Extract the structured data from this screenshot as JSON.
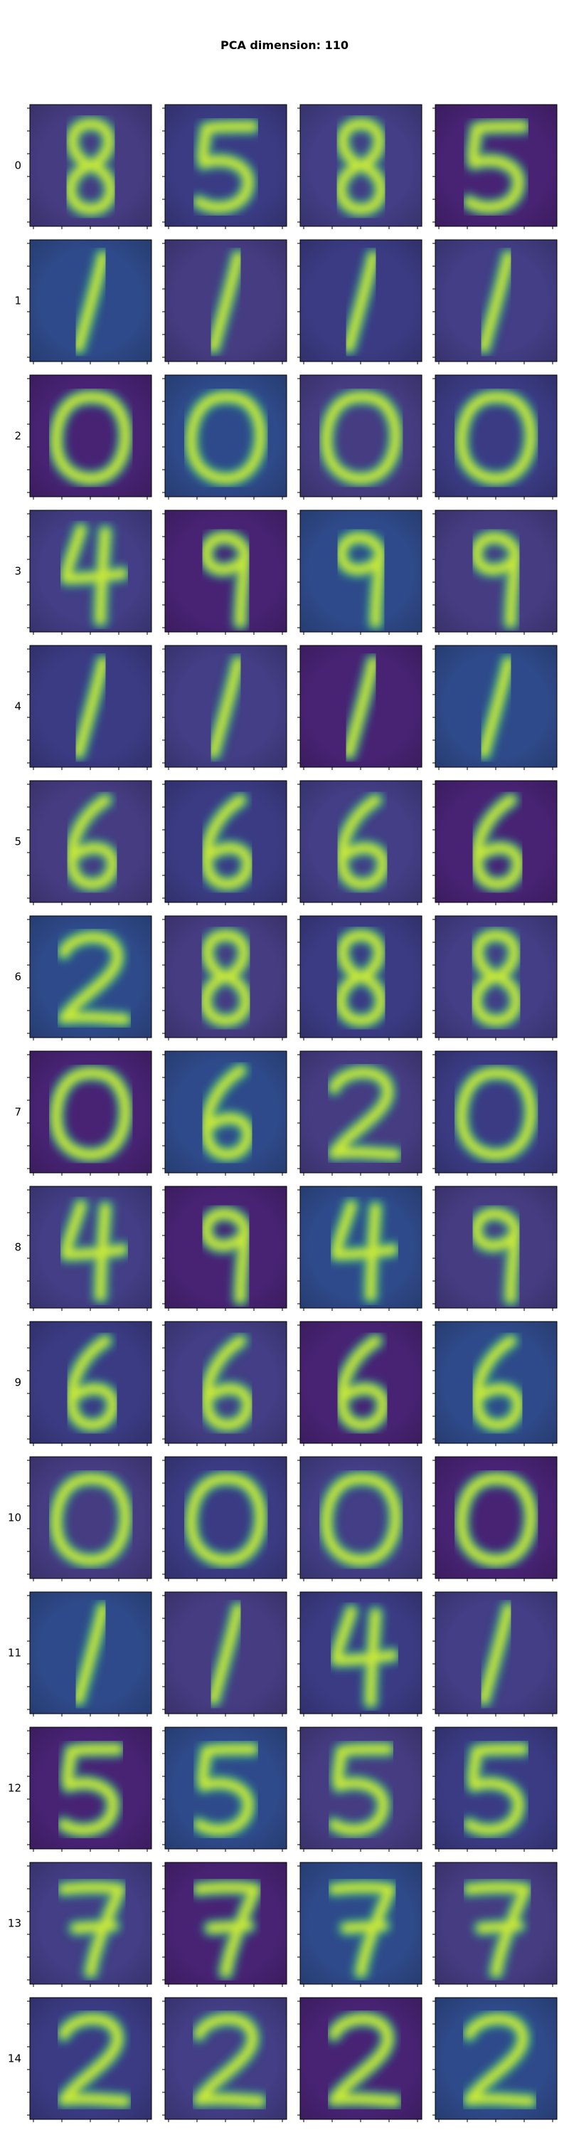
{
  "title": "PCA dimension: 110",
  "chart_data": {
    "type": "image-grid",
    "title": "PCA dimension: 110",
    "rows": 15,
    "cols": 4,
    "row_labels": [
      "0",
      "1",
      "2",
      "3",
      "4",
      "5",
      "6",
      "7",
      "8",
      "9",
      "10",
      "11",
      "12",
      "13",
      "14"
    ],
    "colormap": "viridis",
    "digits_shown": [
      [
        "8",
        "5",
        "8",
        "5"
      ],
      [
        "1",
        "1",
        "1",
        "1"
      ],
      [
        "0",
        "0",
        "0",
        "0"
      ],
      [
        "4",
        "9",
        "9",
        "9"
      ],
      [
        "1",
        "1",
        "1",
        "1"
      ],
      [
        "6",
        "6",
        "6",
        "6"
      ],
      [
        "2",
        "8",
        "8",
        "8"
      ],
      [
        "0",
        "6",
        "2",
        "0"
      ],
      [
        "4",
        "9",
        "4",
        "9"
      ],
      [
        "6",
        "6",
        "6",
        "6"
      ],
      [
        "0",
        "0",
        "0",
        "0"
      ],
      [
        "1",
        "1",
        "4",
        "1"
      ],
      [
        "5",
        "5",
        "5",
        "5"
      ],
      [
        "7",
        "7",
        "7",
        "7"
      ],
      [
        "2",
        "2",
        "2",
        "2"
      ]
    ],
    "background_colors": [
      "#463c82",
      "#3b3b84",
      "#433e85",
      "#482374",
      "#2f4a8a"
    ],
    "digit_stroke_color": "#c6e83a"
  }
}
